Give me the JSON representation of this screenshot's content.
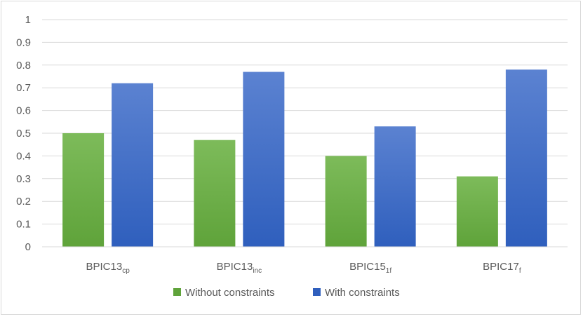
{
  "chart_data": {
    "type": "bar",
    "title": "",
    "xlabel": "",
    "ylabel": "",
    "ylim": [
      0,
      1
    ],
    "yticks": [
      "0",
      "0.1",
      "0.2",
      "0.3",
      "0.4",
      "0.5",
      "0.6",
      "0.7",
      "0.8",
      "0.9",
      "1"
    ],
    "grid": true,
    "legend_position": "bottom",
    "categories": [
      {
        "base": "BPIC13",
        "sub": "cp"
      },
      {
        "base": "BPIC13",
        "sub": "inc"
      },
      {
        "base": "BPIC15",
        "sub": "1f"
      },
      {
        "base": "BPIC17",
        "sub": "f"
      }
    ],
    "series": [
      {
        "name": "Without constraints",
        "color": "#5fa33a",
        "color_light": "#7dbb5a",
        "values": [
          0.5,
          0.47,
          0.4,
          0.31
        ]
      },
      {
        "name": "With constraints",
        "color": "#2f5fbd",
        "color_light": "#5b82d1",
        "values": [
          0.72,
          0.77,
          0.53,
          0.78
        ]
      }
    ]
  }
}
